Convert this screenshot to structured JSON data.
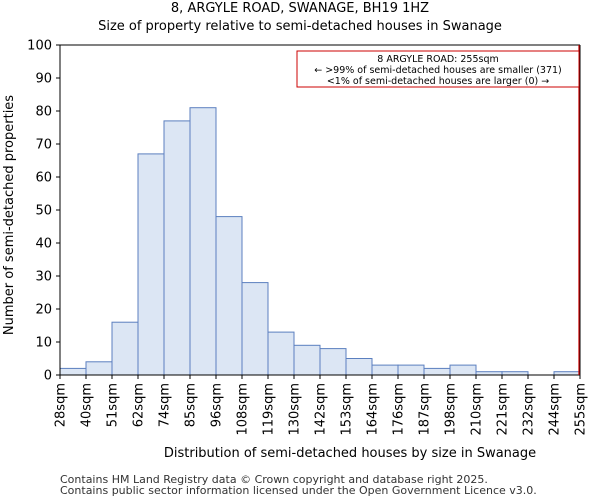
{
  "chart_data": {
    "type": "bar",
    "title": "8, ARGYLE ROAD, SWANAGE, BH19 1HZ",
    "subtitle": "Size of property relative to semi-detached houses in Swanage",
    "xlabel": "Distribution of semi-detached houses by size in Swanage",
    "ylabel": "Number of semi-detached properties",
    "ylim": [
      0,
      100
    ],
    "yticks": [
      0,
      10,
      20,
      30,
      40,
      50,
      60,
      70,
      80,
      90,
      100
    ],
    "bin_edges_labels": [
      "28sqm",
      "40sqm",
      "51sqm",
      "62sqm",
      "74sqm",
      "85sqm",
      "96sqm",
      "108sqm",
      "119sqm",
      "130sqm",
      "142sqm",
      "153sqm",
      "164sqm",
      "176sqm",
      "187sqm",
      "198sqm",
      "210sqm",
      "221sqm",
      "232sqm",
      "244sqm",
      "255sqm"
    ],
    "values": [
      2,
      4,
      16,
      67,
      77,
      81,
      48,
      28,
      13,
      9,
      8,
      5,
      3,
      3,
      2,
      3,
      1,
      1,
      0,
      1
    ],
    "bar_fill": "#dce6f4",
    "bar_stroke": "#5b7fbf",
    "marker": {
      "value_label": "255sqm",
      "color": "#cc0000",
      "annotation": [
        "8 ARGYLE ROAD: 255sqm",
        "← >99% of semi-detached houses are smaller (371)",
        "<1% of semi-detached houses are larger (0) →"
      ]
    }
  },
  "footer": {
    "line1": "Contains HM Land Registry data © Crown copyright and database right 2025.",
    "line2": "Contains public sector information licensed under the Open Government Licence v3.0."
  }
}
